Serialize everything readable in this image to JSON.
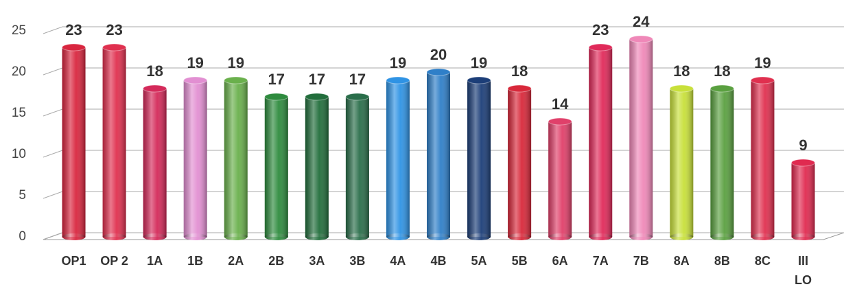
{
  "chart_data": {
    "type": "bar",
    "categories": [
      "OP1",
      "OP 2",
      "1A",
      "1B",
      "2A",
      "2B",
      "3A",
      "3B",
      "4A",
      "4B",
      "5A",
      "5B",
      "6A",
      "7A",
      "7B",
      "8A",
      "8B",
      "8C",
      "III\nLO"
    ],
    "values": [
      23,
      23,
      18,
      19,
      19,
      17,
      17,
      17,
      19,
      20,
      19,
      18,
      14,
      23,
      24,
      18,
      18,
      19,
      9
    ],
    "colors": [
      "#d9263f",
      "#e0304f",
      "#d42a5a",
      "#e28fd2",
      "#6ab04c",
      "#2e8b3e",
      "#226e3c",
      "#2a6e4a",
      "#2f93e4",
      "#2f7fc8",
      "#1c3e78",
      "#d8283a",
      "#e0406a",
      "#e02a5a",
      "#ef88b8",
      "#c8e03a",
      "#5aa040",
      "#e0304f",
      "#e02a50"
    ],
    "ylim": [
      0,
      25
    ],
    "yticks": [
      0,
      5,
      10,
      15,
      20,
      25
    ],
    "grid": true
  }
}
